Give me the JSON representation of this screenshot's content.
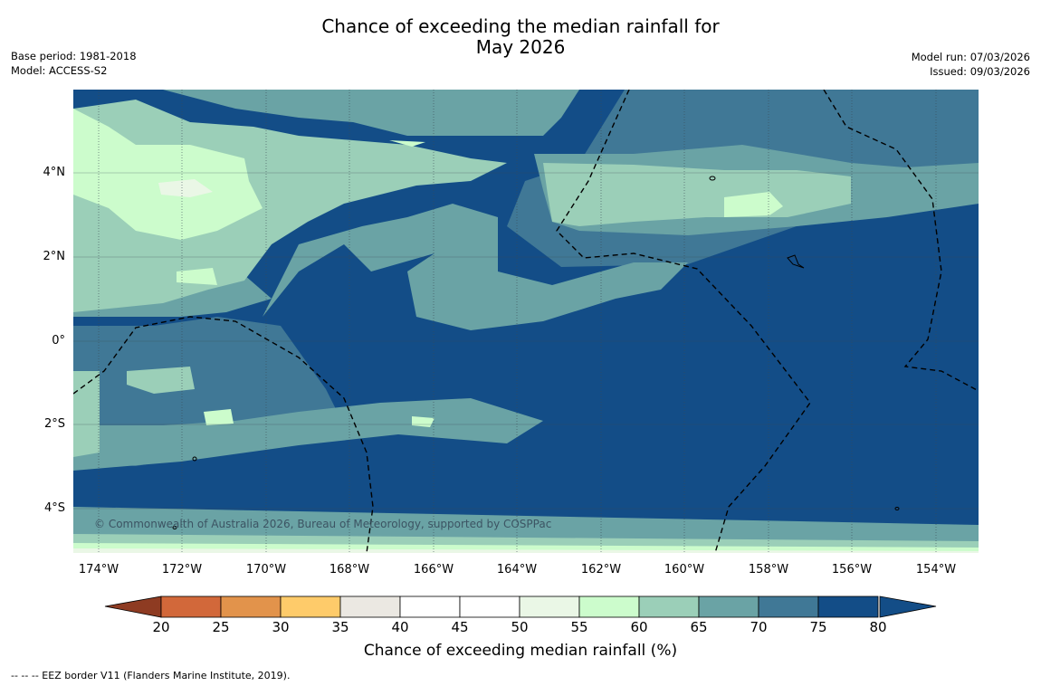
{
  "title_line1": "Chance of exceeding the median rainfall for",
  "title_line2": "May 2026",
  "base_period": "Base period: 1981-2018",
  "model": "Model: ACCESS-S2",
  "model_run": "Model run: 07/03/2026",
  "issued": "Issued: 09/03/2026",
  "copyright": "© Commonwealth of Australia 2026, Bureau of Meteorology, supported by COSPPac",
  "footer": "--  --  -- EEZ border V11 (Flanders Marine Institute, 2019).",
  "lon_labels": [
    "174°W",
    "172°W",
    "170°W",
    "168°W",
    "166°W",
    "164°W",
    "162°W",
    "160°W",
    "158°W",
    "156°W",
    "154°W"
  ],
  "lat_labels": [
    "4°N",
    "2°N",
    "0°",
    "2°S",
    "4°S"
  ],
  "colorbar": {
    "label": "Chance of exceeding median rainfall (%)",
    "ticks": [
      "20",
      "25",
      "30",
      "35",
      "40",
      "45",
      "50",
      "55",
      "60",
      "65",
      "70",
      "75",
      "80"
    ],
    "colors": [
      "#b5462a",
      "#d2683a",
      "#e2934b",
      "#fecb6a",
      "#ebe8e2",
      "#ffffff",
      "#ffffff",
      "#eaf7e6",
      "#ccfccc",
      "#9bcfb8",
      "#6aa3a5",
      "#407896",
      "#134d87"
    ],
    "below_color": "#8e3b22",
    "above_color": "#134d87"
  },
  "map_colors": {
    "c80": "#134d87",
    "c75": "#407896",
    "c70": "#6aa3a5",
    "c65": "#9bcfb8",
    "c60": "#ccfccc",
    "c55": "#eaf7e6"
  }
}
